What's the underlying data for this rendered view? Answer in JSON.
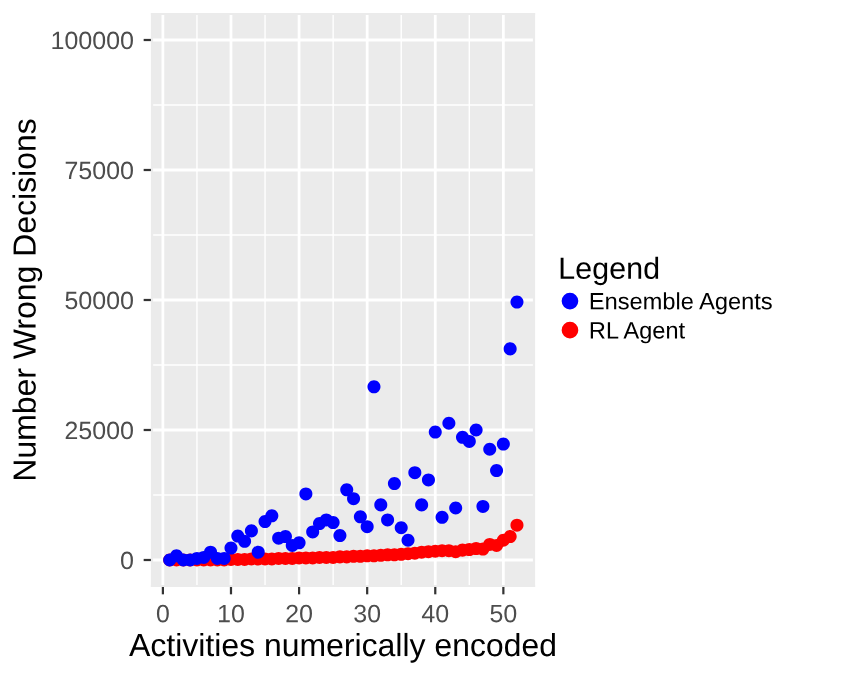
{
  "chart_data": {
    "type": "scatter",
    "xlabel": "Activities numerically encoded",
    "ylabel": "Number Wrong Decisions",
    "legend_title": "Legend",
    "x": [
      1,
      2,
      3,
      4,
      5,
      6,
      7,
      8,
      9,
      10,
      11,
      12,
      13,
      14,
      15,
      16,
      17,
      18,
      19,
      20,
      21,
      22,
      23,
      24,
      25,
      26,
      27,
      28,
      29,
      30,
      31,
      32,
      33,
      34,
      35,
      36,
      37,
      38,
      39,
      40,
      41,
      42,
      43,
      44,
      45,
      46,
      47,
      48,
      49,
      50,
      51,
      52
    ],
    "series": [
      {
        "name": "Ensemble Agents",
        "color": "#0000ff",
        "values": [
          0,
          800,
          0,
          0,
          300,
          500,
          1500,
          300,
          300,
          2300,
          4600,
          3600,
          5600,
          1500,
          7400,
          8500,
          4200,
          4500,
          2800,
          3300,
          12700,
          5400,
          7000,
          7700,
          7200,
          4700,
          13500,
          11800,
          8300,
          6400,
          33300,
          10600,
          7700,
          14700,
          6200,
          3800,
          16800,
          10600,
          15400,
          24600,
          8200,
          26300,
          10000,
          23600,
          22800,
          25000,
          10300,
          21300,
          17200,
          22300,
          40600,
          49600
        ]
      },
      {
        "name": "RL Agent",
        "color": "#ff0000",
        "values": [
          0,
          0,
          0,
          0,
          0,
          0,
          0,
          0,
          0,
          100,
          100,
          100,
          200,
          200,
          200,
          200,
          300,
          300,
          300,
          400,
          400,
          400,
          500,
          500,
          500,
          600,
          600,
          700,
          700,
          800,
          800,
          900,
          1000,
          1000,
          1100,
          1200,
          1300,
          1500,
          1600,
          1700,
          1800,
          1800,
          1600,
          1900,
          2000,
          2200,
          2100,
          3000,
          2800,
          3800,
          4500,
          6700
        ]
      }
    ],
    "xlim": [
      -1.6,
      54.5
    ],
    "ylim": [
      -5000,
      105000
    ],
    "xticks": [
      0,
      10,
      20,
      30,
      40,
      50
    ],
    "yticks": [
      0,
      25000,
      50000,
      75000,
      100000
    ],
    "grid": true,
    "legend": "right",
    "marker": "circle"
  }
}
